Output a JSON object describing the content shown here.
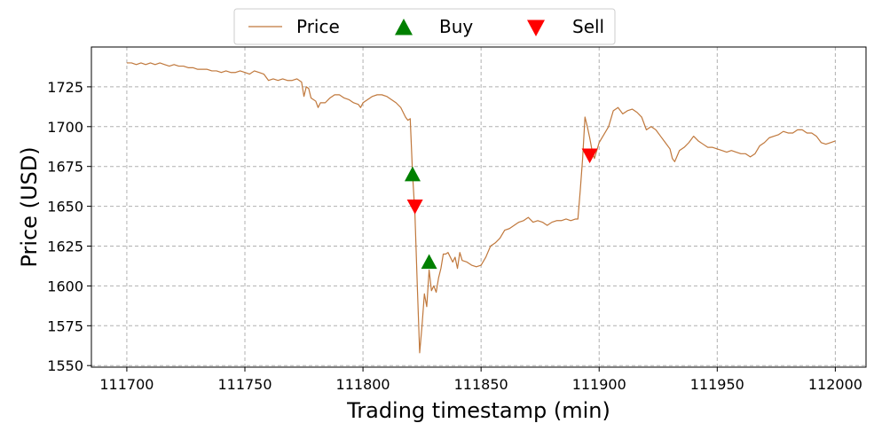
{
  "chart_data": {
    "type": "line",
    "xlabel": "Trading timestamp (min)",
    "ylabel": "Price (USD)",
    "xlim": [
      111685,
      112013
    ],
    "ylim": [
      1549,
      1750
    ],
    "x_ticks": [
      111700,
      111750,
      111800,
      111850,
      111900,
      111950,
      112000
    ],
    "y_ticks": [
      1550,
      1575,
      1600,
      1625,
      1650,
      1675,
      1700,
      1725
    ],
    "grid": true,
    "legend_position": "top-center",
    "legend": {
      "price_label": "Price",
      "buy_label": "Buy",
      "sell_label": "Sell"
    },
    "colors": {
      "price": "#c0783c",
      "buy": "#008000",
      "sell": "#ff0000",
      "grid": "#b0b0b0"
    },
    "series": [
      {
        "name": "Price",
        "points": [
          [
            111700,
            1740
          ],
          [
            111702,
            1740
          ],
          [
            111704,
            1739
          ],
          [
            111706,
            1740
          ],
          [
            111708,
            1739
          ],
          [
            111710,
            1740
          ],
          [
            111712,
            1739
          ],
          [
            111714,
            1740
          ],
          [
            111716,
            1739
          ],
          [
            111718,
            1738
          ],
          [
            111720,
            1739
          ],
          [
            111722,
            1738
          ],
          [
            111724,
            1738
          ],
          [
            111726,
            1737
          ],
          [
            111728,
            1737
          ],
          [
            111730,
            1736
          ],
          [
            111732,
            1736
          ],
          [
            111734,
            1736
          ],
          [
            111736,
            1735
          ],
          [
            111738,
            1735
          ],
          [
            111740,
            1734
          ],
          [
            111742,
            1735
          ],
          [
            111744,
            1734
          ],
          [
            111746,
            1734
          ],
          [
            111748,
            1735
          ],
          [
            111750,
            1734
          ],
          [
            111752,
            1733
          ],
          [
            111754,
            1735
          ],
          [
            111756,
            1734
          ],
          [
            111758,
            1733
          ],
          [
            111760,
            1729
          ],
          [
            111762,
            1730
          ],
          [
            111764,
            1729
          ],
          [
            111766,
            1730
          ],
          [
            111768,
            1729
          ],
          [
            111770,
            1729
          ],
          [
            111772,
            1730
          ],
          [
            111774,
            1728
          ],
          [
            111775,
            1719
          ],
          [
            111776,
            1725
          ],
          [
            111777,
            1724
          ],
          [
            111778,
            1718
          ],
          [
            111780,
            1716
          ],
          [
            111781,
            1712
          ],
          [
            111782,
            1715
          ],
          [
            111784,
            1715
          ],
          [
            111786,
            1718
          ],
          [
            111788,
            1720
          ],
          [
            111790,
            1720
          ],
          [
            111792,
            1718
          ],
          [
            111794,
            1717
          ],
          [
            111796,
            1715
          ],
          [
            111798,
            1714
          ],
          [
            111799,
            1712
          ],
          [
            111800,
            1715
          ],
          [
            111802,
            1717
          ],
          [
            111804,
            1719
          ],
          [
            111806,
            1720
          ],
          [
            111808,
            1720
          ],
          [
            111810,
            1719
          ],
          [
            111812,
            1717
          ],
          [
            111814,
            1715
          ],
          [
            111816,
            1712
          ],
          [
            111818,
            1706
          ],
          [
            111819,
            1704
          ],
          [
            111820,
            1705
          ],
          [
            111821,
            1670
          ],
          [
            111822,
            1645
          ],
          [
            111823,
            1600
          ],
          [
            111824,
            1558
          ],
          [
            111825,
            1575
          ],
          [
            111826,
            1595
          ],
          [
            111827,
            1587
          ],
          [
            111828,
            1610
          ],
          [
            111829,
            1597
          ],
          [
            111830,
            1600
          ],
          [
            111831,
            1596
          ],
          [
            111832,
            1605
          ],
          [
            111833,
            1611
          ],
          [
            111834,
            1620
          ],
          [
            111835,
            1620
          ],
          [
            111836,
            1621
          ],
          [
            111837,
            1618
          ],
          [
            111838,
            1615
          ],
          [
            111839,
            1618
          ],
          [
            111840,
            1611
          ],
          [
            111841,
            1621
          ],
          [
            111842,
            1616
          ],
          [
            111844,
            1615
          ],
          [
            111846,
            1613
          ],
          [
            111848,
            1612
          ],
          [
            111850,
            1613
          ],
          [
            111852,
            1618
          ],
          [
            111854,
            1625
          ],
          [
            111856,
            1627
          ],
          [
            111858,
            1630
          ],
          [
            111860,
            1635
          ],
          [
            111862,
            1636
          ],
          [
            111864,
            1638
          ],
          [
            111866,
            1640
          ],
          [
            111868,
            1641
          ],
          [
            111870,
            1643
          ],
          [
            111872,
            1640
          ],
          [
            111874,
            1641
          ],
          [
            111876,
            1640
          ],
          [
            111878,
            1638
          ],
          [
            111880,
            1640
          ],
          [
            111882,
            1641
          ],
          [
            111884,
            1641
          ],
          [
            111886,
            1642
          ],
          [
            111888,
            1641
          ],
          [
            111890,
            1642
          ],
          [
            111891,
            1642
          ],
          [
            111892,
            1660
          ],
          [
            111893,
            1680
          ],
          [
            111894,
            1706
          ],
          [
            111895,
            1700
          ],
          [
            111896,
            1693
          ],
          [
            111897,
            1685
          ],
          [
            111898,
            1680
          ],
          [
            111900,
            1690
          ],
          [
            111902,
            1695
          ],
          [
            111904,
            1700
          ],
          [
            111906,
            1710
          ],
          [
            111908,
            1712
          ],
          [
            111910,
            1708
          ],
          [
            111912,
            1710
          ],
          [
            111914,
            1711
          ],
          [
            111916,
            1709
          ],
          [
            111918,
            1706
          ],
          [
            111920,
            1698
          ],
          [
            111922,
            1700
          ],
          [
            111924,
            1698
          ],
          [
            111926,
            1694
          ],
          [
            111928,
            1690
          ],
          [
            111930,
            1686
          ],
          [
            111931,
            1680
          ],
          [
            111932,
            1678
          ],
          [
            111934,
            1685
          ],
          [
            111936,
            1687
          ],
          [
            111938,
            1690
          ],
          [
            111940,
            1694
          ],
          [
            111942,
            1691
          ],
          [
            111944,
            1689
          ],
          [
            111946,
            1687
          ],
          [
            111948,
            1687
          ],
          [
            111950,
            1686
          ],
          [
            111952,
            1685
          ],
          [
            111954,
            1684
          ],
          [
            111956,
            1685
          ],
          [
            111958,
            1684
          ],
          [
            111960,
            1683
          ],
          [
            111962,
            1683
          ],
          [
            111964,
            1681
          ],
          [
            111966,
            1683
          ],
          [
            111968,
            1688
          ],
          [
            111970,
            1690
          ],
          [
            111972,
            1693
          ],
          [
            111974,
            1694
          ],
          [
            111976,
            1695
          ],
          [
            111978,
            1697
          ],
          [
            111980,
            1696
          ],
          [
            111982,
            1696
          ],
          [
            111984,
            1698
          ],
          [
            111986,
            1698
          ],
          [
            111988,
            1696
          ],
          [
            111990,
            1696
          ],
          [
            111992,
            1694
          ],
          [
            111994,
            1690
          ],
          [
            111996,
            1689
          ],
          [
            111998,
            1690
          ],
          [
            112000,
            1691
          ]
        ]
      },
      {
        "name": "Buy",
        "marker": "triangle-up",
        "points": [
          [
            111821,
            1670
          ],
          [
            111828,
            1615
          ]
        ]
      },
      {
        "name": "Sell",
        "marker": "triangle-down",
        "points": [
          [
            111822,
            1650
          ],
          [
            111896,
            1682
          ]
        ]
      }
    ]
  }
}
